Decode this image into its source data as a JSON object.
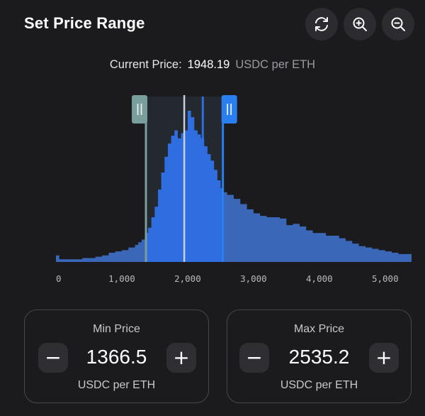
{
  "header": {
    "title": "Set Price Range",
    "icons": [
      "refresh-icon",
      "zoom-in-icon",
      "zoom-out-icon"
    ]
  },
  "current_price": {
    "label": "Current Price:",
    "value": "1948.19",
    "unit": "USDC per ETH"
  },
  "chart": {
    "x_ticks": [
      "0",
      "1,000",
      "2,000",
      "3,000",
      "4,000",
      "5,000"
    ],
    "handle_glyph": "||"
  },
  "chart_data": {
    "type": "area",
    "x": [
      0,
      50,
      100,
      200,
      300,
      400,
      500,
      600,
      700,
      800,
      900,
      1000,
      1100,
      1200,
      1250,
      1300,
      1350,
      1400,
      1450,
      1500,
      1550,
      1600,
      1650,
      1700,
      1750,
      1800,
      1850,
      1900,
      1950,
      2000,
      2050,
      2100,
      2150,
      2200,
      2250,
      2300,
      2350,
      2400,
      2450,
      2500,
      2550,
      2600,
      2700,
      2800,
      2900,
      3000,
      3100,
      3200,
      3300,
      3400,
      3500,
      3600,
      3700,
      3800,
      3900,
      4000,
      4100,
      4200,
      4300,
      4400,
      4500,
      4600,
      4700,
      4800,
      4900,
      5000,
      5100,
      5200,
      5300
    ],
    "y": [
      5,
      2,
      2,
      2,
      2,
      3,
      3,
      4,
      5,
      7,
      8,
      9,
      11,
      13,
      15,
      17,
      22,
      26,
      34,
      42,
      55,
      68,
      80,
      90,
      96,
      100,
      94,
      98,
      100,
      115,
      110,
      100,
      97,
      94,
      88,
      82,
      77,
      70,
      62,
      56,
      53,
      51,
      48,
      44,
      40,
      37,
      35,
      34,
      34,
      33,
      28,
      29,
      27,
      24,
      22,
      22,
      20,
      20,
      18,
      16,
      14,
      12,
      11,
      10,
      9,
      8,
      7,
      6,
      6
    ],
    "xlim": [
      0,
      5400
    ],
    "current_price": 1948.19,
    "min_price": 1366.5,
    "max_price": 2535.2,
    "colors": {
      "area": "#3a67b8",
      "selected_area": "#2f6ee0",
      "min_handle": "#7a9e9b",
      "max_handle": "#2a7ff0",
      "current_line": "#c9cfd9"
    }
  },
  "min_price": {
    "title": "Min Price",
    "value": "1366.5",
    "unit": "USDC per ETH",
    "decrement": "−",
    "increment": "+"
  },
  "max_price": {
    "title": "Max Price",
    "value": "2535.2",
    "unit": "USDC per ETH",
    "decrement": "−",
    "increment": "+"
  }
}
